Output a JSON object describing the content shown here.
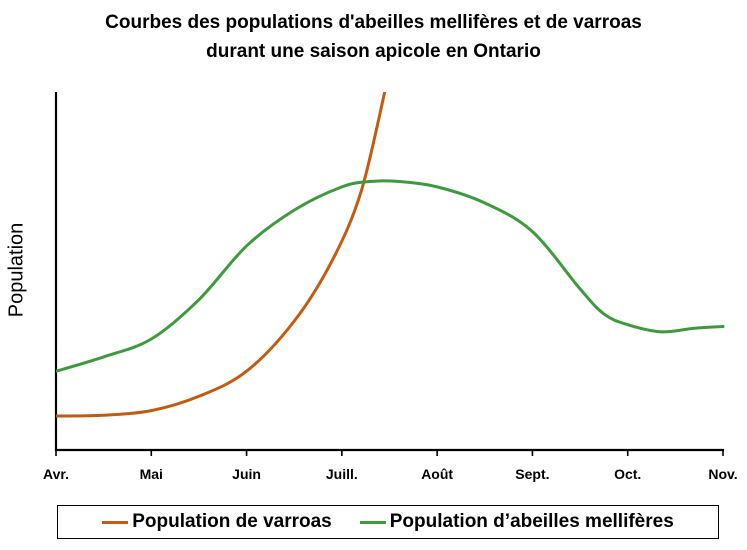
{
  "chart_data": {
    "type": "line",
    "title": "Courbes des populations d'abeilles mellifères et de varroas durant une saison apicole en Ontario",
    "title_lines": [
      "Courbes des populations d'abeilles mellifères et de varroas",
      "durant une saison apicole en Ontario"
    ],
    "xlabel": "",
    "ylabel": "Population",
    "categories": [
      "Avr.",
      "Mai",
      "Juin",
      "Juill.",
      "Août",
      "Sept.",
      "Oct.",
      "Nov."
    ],
    "xlim": [
      0,
      7
    ],
    "ylim": [
      0,
      100
    ],
    "grid": false,
    "legend_position": "bottom",
    "series": [
      {
        "name": "Population de varroas",
        "color": "#c55a11",
        "x": [
          0,
          0.5,
          1,
          1.5,
          2,
          2.5,
          2.9,
          3.2,
          3.45
        ],
        "values": [
          9.5,
          9.7,
          11,
          15,
          22,
          36,
          53,
          72,
          100
        ]
      },
      {
        "name": "Population d’abeilles mellifères",
        "color": "#3d9b3d",
        "x": [
          0,
          0.5,
          1,
          1.5,
          2,
          2.5,
          3,
          3.3,
          3.6,
          4,
          4.5,
          5,
          5.5,
          5.75,
          6,
          6.35,
          6.7,
          7
        ],
        "values": [
          22,
          26,
          31,
          42,
          57,
          67,
          73.5,
          75,
          75,
          73.5,
          69,
          61,
          45,
          38,
          35,
          33,
          34,
          34.5
        ]
      }
    ]
  }
}
